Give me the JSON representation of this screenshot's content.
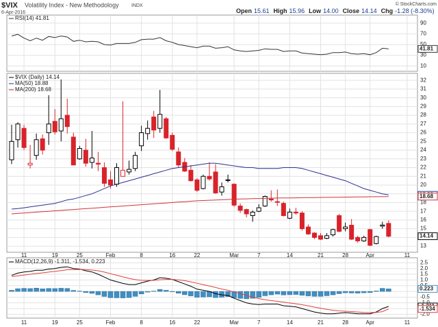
{
  "header": {
    "title": "$VIX",
    "subtitle": "Volatility Index - New Methodology",
    "exchange": "INDX",
    "date": "6-Apr-2016",
    "credit": "© StockCharts.com",
    "stats": [
      {
        "label": "Open",
        "value": "15.61"
      },
      {
        "label": "High",
        "value": "15.96"
      },
      {
        "label": "Low",
        "value": "14.00"
      },
      {
        "label": "Close",
        "value": "14.14"
      },
      {
        "label": "Chg",
        "value": "-1.28 (-8.30%)"
      }
    ]
  },
  "chart_data": [
    {
      "type": "line",
      "ylim": [
        0,
        105
      ],
      "yticks": [
        10,
        30,
        50,
        70,
        90
      ],
      "grid": true,
      "series": [
        {
          "name": "RSI(14) 41.81",
          "color": "#333333",
          "values": [
            66,
            69,
            62,
            57,
            62,
            58,
            65,
            63,
            66,
            64,
            56,
            58,
            55,
            56,
            55,
            50,
            49,
            52,
            52,
            52,
            54,
            59,
            60,
            60,
            63,
            57,
            54,
            50,
            48,
            46,
            44,
            47,
            47,
            43,
            44,
            46,
            40,
            38,
            37,
            38,
            39,
            42,
            41,
            41,
            37,
            38,
            38,
            34,
            33,
            32,
            31,
            32,
            35,
            35,
            36,
            33,
            32,
            33,
            31,
            35,
            43,
            41.81
          ]
        }
      ]
    },
    {
      "type": "candlestick",
      "ylim": [
        12.3,
        32.8
      ],
      "yticks": [
        13,
        14,
        15,
        16,
        17,
        18,
        19,
        20,
        21,
        22,
        23,
        24,
        25,
        26,
        27,
        28,
        29,
        30,
        31,
        32
      ],
      "grid": true,
      "up_color": "#000000",
      "down_color": "#d8232a",
      "categories": [
        null,
        null,
        "11",
        null,
        null,
        null,
        null,
        "19",
        null,
        null,
        null,
        "25",
        null,
        null,
        null,
        null,
        "Feb",
        null,
        null,
        null,
        null,
        "8",
        null,
        null,
        null,
        null,
        "16",
        null,
        null,
        null,
        "22",
        null,
        null,
        null,
        null,
        null,
        "Mar",
        null,
        null,
        null,
        "7",
        null,
        null,
        null,
        null,
        "14",
        null,
        null,
        null,
        null,
        "21",
        null,
        null,
        null,
        "28",
        null,
        null,
        null,
        "Apr",
        null,
        null,
        null,
        null,
        null,
        "11"
      ],
      "series": [
        {
          "name": "$VIX (Daily) 14.14",
          "color": "#000000",
          "open": [
            22.9,
            25.2,
            26.5,
            22.3,
            23.4,
            25.3,
            26.0,
            27.3,
            26.2,
            28.0,
            25.5,
            23.0,
            24.0,
            22.6,
            22.5,
            22.0,
            20.6,
            20.1,
            21.0,
            21.5,
            21.9,
            24.5,
            25.9,
            27.8,
            26.5,
            27.6,
            25.7,
            23.8,
            22.6,
            21.7,
            20.6,
            19.6,
            21.0,
            21.5,
            19.2,
            20.6,
            20.1,
            17.6,
            17.2,
            16.5,
            17.0,
            17.6,
            18.4,
            18.1,
            17.9,
            16.2,
            16.9,
            16.8,
            15.2,
            14.5,
            14.2,
            13.9,
            14.3,
            16.5,
            15.0,
            15.4,
            14.0,
            13.6,
            14.9,
            13.3,
            15.3,
            15.61,
            null,
            null,
            null
          ],
          "high": [
            26.9,
            27.2,
            26.9,
            24.6,
            25.9,
            25.8,
            30.3,
            28.7,
            32.1,
            29.9,
            26.0,
            24.5,
            25.3,
            26.2,
            23.8,
            22.6,
            21.6,
            22.5,
            29.6,
            22.8,
            23.8,
            26.8,
            27.4,
            28.5,
            30.9,
            27.8,
            26.0,
            24.3,
            23.1,
            22.3,
            20.8,
            21.2,
            22.6,
            22.4,
            20.3,
            21.2,
            20.2,
            17.9,
            17.3,
            17.1,
            17.8,
            18.8,
            19.4,
            19.5,
            18.1,
            17.3,
            17.4,
            17.0,
            15.5,
            14.6,
            14.5,
            14.5,
            15.0,
            16.7,
            15.7,
            16.1,
            14.2,
            14.2,
            15.0,
            14.2,
            15.8,
            15.96,
            null,
            null,
            null
          ],
          "low": [
            22.4,
            24.3,
            24.0,
            21.9,
            22.9,
            23.5,
            24.6,
            25.8,
            25.0,
            25.9,
            22.3,
            22.9,
            22.1,
            21.9,
            21.6,
            19.8,
            19.6,
            19.8,
            21.0,
            21.2,
            21.6,
            23.9,
            25.2,
            25.4,
            26.0,
            25.3,
            23.9,
            22.0,
            21.5,
            20.4,
            19.2,
            19.5,
            20.5,
            19.0,
            18.8,
            20.3,
            17.5,
            16.8,
            16.3,
            15.8,
            16.9,
            17.5,
            18.1,
            17.6,
            16.4,
            16.1,
            16.6,
            14.8,
            14.3,
            13.8,
            13.7,
            13.8,
            14.1,
            14.6,
            14.7,
            13.7,
            13.4,
            13.5,
            13.0,
            13.2,
            15.0,
            14.0,
            null,
            null,
            null
          ],
          "close": [
            25.0,
            27.0,
            24.3,
            22.5,
            25.2,
            24.0,
            27.0,
            26.1,
            27.6,
            26.7,
            22.3,
            24.2,
            22.5,
            23.1,
            22.4,
            20.2,
            20.0,
            22.0,
            21.7,
            21.8,
            23.4,
            26.0,
            26.5,
            26.3,
            28.1,
            25.4,
            24.1,
            22.3,
            21.6,
            20.5,
            19.4,
            21.0,
            20.7,
            19.1,
            19.8,
            20.6,
            17.7,
            17.1,
            16.7,
            16.9,
            17.4,
            18.7,
            18.3,
            18.1,
            16.5,
            16.9,
            16.8,
            15.0,
            14.4,
            14.0,
            13.8,
            14.2,
            14.9,
            14.7,
            15.2,
            13.8,
            13.6,
            14.0,
            13.1,
            14.1,
            15.42,
            14.14,
            null,
            null,
            null
          ]
        },
        {
          "name": "MA(50) 18.88",
          "color": "#2b2f8f",
          "values": [
            17.25,
            17.3,
            17.4,
            17.5,
            17.6,
            17.7,
            17.8,
            17.9,
            18.1,
            18.3,
            18.4,
            18.6,
            18.8,
            19.0,
            19.3,
            19.6,
            19.9,
            20.1,
            20.3,
            20.5,
            20.7,
            20.9,
            21.1,
            21.3,
            21.5,
            21.7,
            21.9,
            22.0,
            22.1,
            22.2,
            22.3,
            22.4,
            22.5,
            22.5,
            22.4,
            22.3,
            22.2,
            22.1,
            22.0,
            22.0,
            21.9,
            21.9,
            21.9,
            21.9,
            22.0,
            22.0,
            22.0,
            21.9,
            21.7,
            21.5,
            21.3,
            21.1,
            20.9,
            20.7,
            20.5,
            20.2,
            19.9,
            19.6,
            19.4,
            19.2,
            19.0,
            18.88,
            null,
            null,
            null
          ]
        },
        {
          "name": "MA(200) 18.68",
          "color": "#d0333a",
          "values": [
            16.7,
            16.75,
            16.8,
            16.85,
            16.9,
            16.95,
            17.0,
            17.05,
            17.1,
            17.15,
            17.2,
            17.25,
            17.3,
            17.35,
            17.4,
            17.45,
            17.5,
            17.55,
            17.6,
            17.65,
            17.7,
            17.75,
            17.8,
            17.85,
            17.9,
            17.95,
            18.0,
            18.05,
            18.1,
            18.15,
            18.2,
            18.23,
            18.26,
            18.29,
            18.32,
            18.35,
            18.38,
            18.4,
            18.42,
            18.44,
            18.46,
            18.48,
            18.5,
            18.51,
            18.52,
            18.53,
            18.54,
            18.55,
            18.56,
            18.57,
            18.58,
            18.59,
            18.6,
            18.61,
            18.62,
            18.63,
            18.64,
            18.65,
            18.66,
            18.67,
            18.67,
            18.68,
            null,
            null,
            null
          ]
        }
      ]
    },
    {
      "type": "macd",
      "legend": "MACD(12,26,9) -1.311, -1.534, 0.223",
      "ylim": [
        -2.33,
        2.94
      ],
      "yticks": [
        2.5,
        {
          "value": 2,
          "label": "2.0"
        },
        1.5,
        {
          "value": 1,
          "label": "1.0"
        },
        0.5,
        {
          "value": 0,
          "label": "0.0"
        },
        -0.5,
        {
          "value": -1,
          "label": "-1.0"
        },
        -1.5,
        {
          "value": -2,
          "label": "-2.0"
        }
      ],
      "grid": true,
      "categories": [
        null,
        null,
        "11",
        null,
        null,
        null,
        null,
        "19",
        null,
        null,
        null,
        "25",
        null,
        null,
        null,
        null,
        "Feb",
        null,
        null,
        null,
        null,
        "8",
        null,
        null,
        null,
        null,
        "16",
        null,
        null,
        null,
        "22",
        null,
        null,
        null,
        null,
        null,
        "Mar",
        null,
        null,
        null,
        "7",
        null,
        null,
        null,
        null,
        "14",
        null,
        null,
        null,
        null,
        "21",
        null,
        null,
        null,
        "28",
        null,
        null,
        null,
        "Apr",
        null,
        null,
        null,
        null,
        null,
        "11"
      ],
      "series": [
        {
          "color": "#3f8fc4",
          "style": "bar",
          "values": [
            0.1,
            0.24,
            0.27,
            0.25,
            0.29,
            0.23,
            0.26,
            0.25,
            0.28,
            0.26,
            0.09,
            0.03,
            -0.1,
            -0.17,
            -0.3,
            -0.44,
            -0.55,
            -0.56,
            -0.57,
            -0.54,
            -0.43,
            -0.22,
            -0.06,
            0.03,
            0.18,
            0.1,
            0,
            -0.16,
            -0.29,
            -0.39,
            -0.51,
            -0.49,
            -0.47,
            -0.54,
            -0.51,
            -0.45,
            -0.56,
            -0.61,
            -0.65,
            -0.6,
            -0.52,
            -0.38,
            -0.3,
            -0.24,
            -0.31,
            -0.29,
            -0.27,
            -0.34,
            -0.39,
            -0.43,
            -0.43,
            -0.38,
            -0.3,
            -0.2,
            -0.12,
            -0.14,
            -0.15,
            -0.12,
            -0.1,
            0.04,
            0.27,
            0.223,
            null,
            null,
            null
          ]
        },
        {
          "color": "#000000",
          "values": [
            1.4,
            1.6,
            1.7,
            1.75,
            1.85,
            1.85,
            1.95,
            2.0,
            2.1,
            2.15,
            2.0,
            1.95,
            1.8,
            1.7,
            1.5,
            1.25,
            1.0,
            0.85,
            0.7,
            0.6,
            0.6,
            0.75,
            0.9,
            1.0,
            1.2,
            1.15,
            1.05,
            0.85,
            0.65,
            0.45,
            0.2,
            0.1,
            0.0,
            -0.2,
            -0.3,
            -0.35,
            -0.6,
            -0.8,
            -1.0,
            -1.1,
            -1.15,
            -1.1,
            -1.1,
            -1.1,
            -1.25,
            -1.3,
            -1.35,
            -1.5,
            -1.65,
            -1.8,
            -1.9,
            -1.95,
            -1.95,
            -1.9,
            -1.85,
            -1.9,
            -1.95,
            -1.95,
            -1.95,
            -1.8,
            -1.5,
            -1.311,
            null,
            null,
            null
          ]
        },
        {
          "color": "#e0403a",
          "values": [
            1.3,
            1.36,
            1.43,
            1.5,
            1.56,
            1.62,
            1.69,
            1.75,
            1.82,
            1.89,
            1.91,
            1.92,
            1.9,
            1.87,
            1.8,
            1.69,
            1.55,
            1.41,
            1.27,
            1.14,
            1.03,
            0.97,
            0.96,
            0.97,
            1.02,
            1.05,
            1.05,
            1.01,
            0.94,
            0.84,
            0.71,
            0.59,
            0.47,
            0.34,
            0.21,
            0.1,
            -0.04,
            -0.19,
            -0.35,
            -0.5,
            -0.63,
            -0.72,
            -0.8,
            -0.86,
            -0.94,
            -1.01,
            -1.08,
            -1.16,
            -1.26,
            -1.37,
            -1.47,
            -1.57,
            -1.65,
            -1.7,
            -1.73,
            -1.76,
            -1.8,
            -1.83,
            -1.85,
            -1.84,
            -1.77,
            -1.534,
            null,
            null,
            null
          ]
        }
      ]
    }
  ]
}
